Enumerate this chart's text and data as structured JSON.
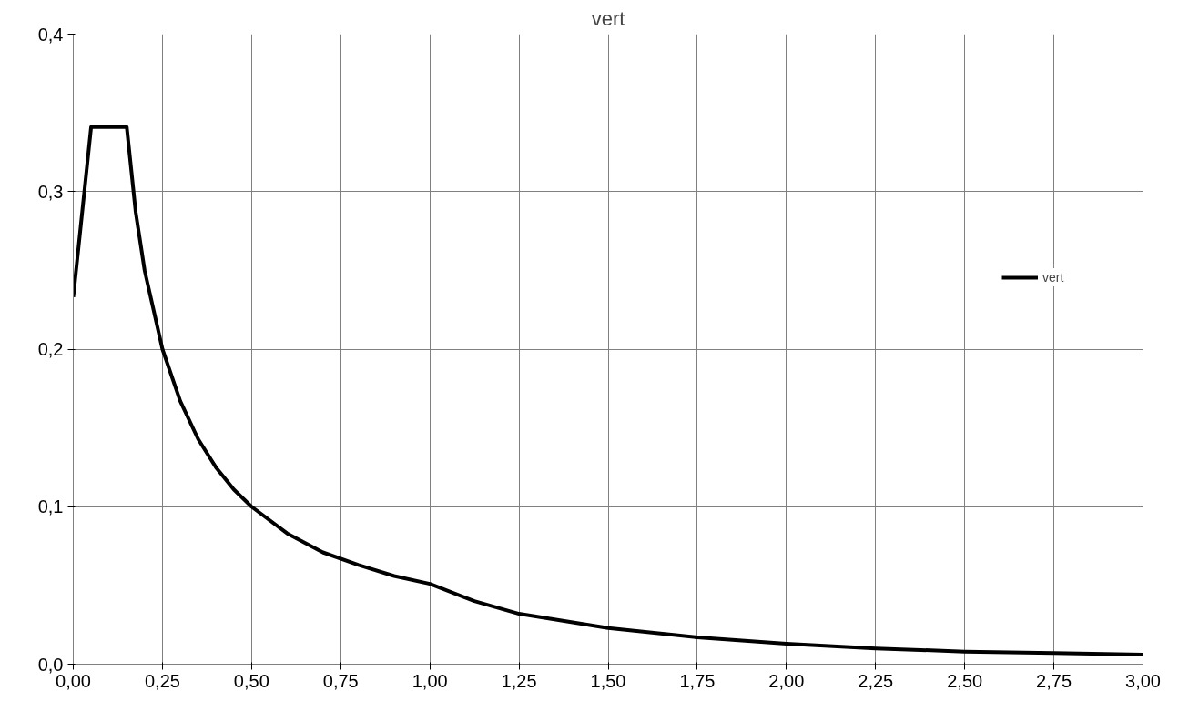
{
  "chart_data": {
    "type": "line",
    "title": "vert",
    "x": [
      0,
      0.05,
      0.15,
      0.175,
      0.2,
      0.25,
      0.3,
      0.35,
      0.4,
      0.45,
      0.5,
      0.6,
      0.7,
      0.8,
      0.9,
      1.0,
      1.125,
      1.25,
      1.5,
      1.75,
      2.0,
      2.25,
      2.5,
      2.75,
      3.0
    ],
    "series": [
      {
        "name": "vert",
        "color": "#000000",
        "values": [
          0.233,
          0.341,
          0.341,
          0.287,
          0.25,
          0.2,
          0.167,
          0.143,
          0.125,
          0.111,
          0.1,
          0.083,
          0.071,
          0.063,
          0.056,
          0.051,
          0.04,
          0.032,
          0.023,
          0.017,
          0.013,
          0.01,
          0.008,
          0.007,
          0.006
        ]
      }
    ],
    "xlim": [
      0,
      3
    ],
    "ylim": [
      0,
      0.4
    ],
    "xticks": [
      {
        "value": 0,
        "label": "0,00"
      },
      {
        "value": 0.25,
        "label": "0,25"
      },
      {
        "value": 0.5,
        "label": "0,50"
      },
      {
        "value": 0.75,
        "label": "0,75"
      },
      {
        "value": 1,
        "label": "1,00"
      },
      {
        "value": 1.25,
        "label": "1,25"
      },
      {
        "value": 1.5,
        "label": "1,50"
      },
      {
        "value": 1.75,
        "label": "1,75"
      },
      {
        "value": 2,
        "label": "2,00"
      },
      {
        "value": 2.25,
        "label": "2,25"
      },
      {
        "value": 2.5,
        "label": "2,50"
      },
      {
        "value": 2.75,
        "label": "2,75"
      },
      {
        "value": 3,
        "label": "3,00"
      }
    ],
    "yticks": [
      {
        "value": 0,
        "label": "0,0"
      },
      {
        "value": 0.1,
        "label": "0,1"
      },
      {
        "value": 0.2,
        "label": "0,2"
      },
      {
        "value": 0.3,
        "label": "0,3"
      },
      {
        "value": 0.4,
        "label": "0,4"
      }
    ],
    "grid": true,
    "legend": "right",
    "marker": "none",
    "line_style": "solid"
  }
}
